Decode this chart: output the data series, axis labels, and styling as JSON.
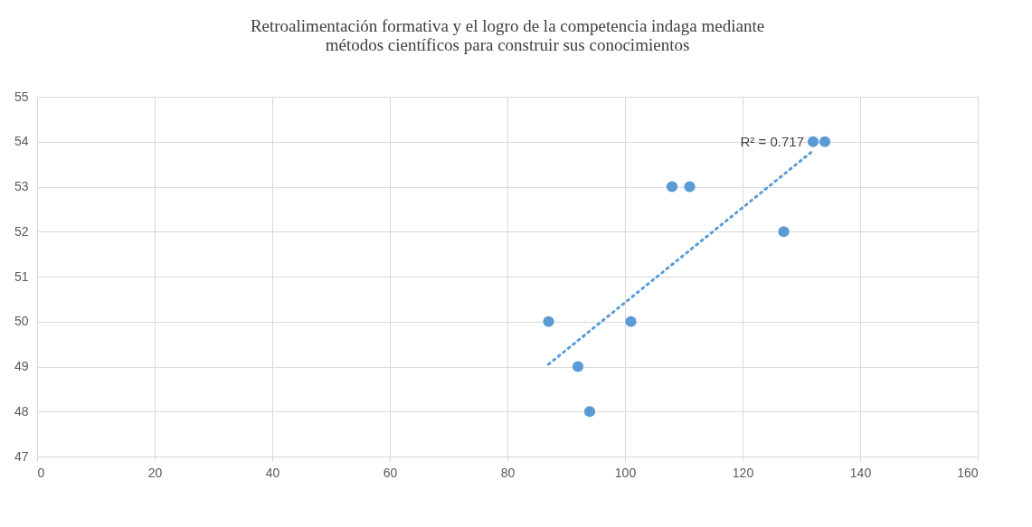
{
  "chart_data": {
    "type": "scatter",
    "title": [
      "Retroalimentación formativa y el logro de la competencia indaga mediante",
      "métodos científicos para construir sus conocimientos"
    ],
    "series": [
      {
        "color": "#5b9bd5",
        "marker": "circle",
        "x": [
          87,
          92,
          94,
          101,
          108,
          111,
          127,
          132,
          134
        ],
        "values": [
          50,
          49,
          48,
          50,
          53,
          53,
          52,
          54,
          54
        ]
      },
      {
        "type": "line",
        "color": "#5b9bd5",
        "line_style": "dotted",
        "marker": "none",
        "x": [
          87,
          132
        ],
        "values": [
          49.05,
          53.8
        ]
      }
    ],
    "annotations": [
      {
        "text": "R² = 0.717",
        "x": 132,
        "y": 54
      }
    ],
    "xlim": [
      0,
      160
    ],
    "xticks": [
      0,
      20,
      40,
      60,
      80,
      100,
      120,
      140,
      160
    ],
    "ylim": [
      47,
      55
    ],
    "yticks": [
      47,
      48,
      49,
      50,
      51,
      52,
      53,
      54,
      55
    ],
    "grid": true
  }
}
